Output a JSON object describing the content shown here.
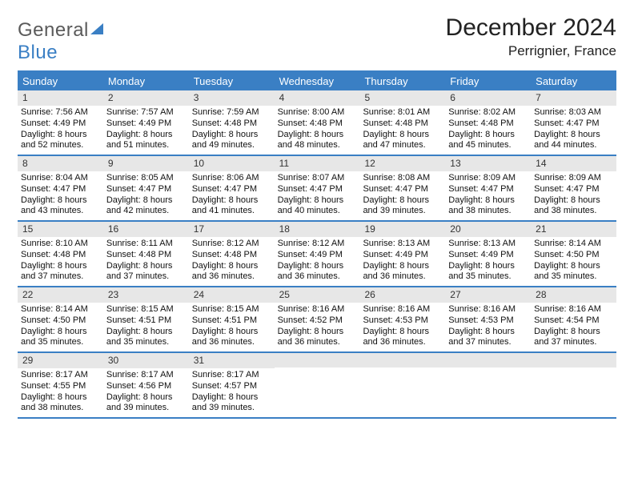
{
  "brand": {
    "general": "General",
    "blue": "Blue"
  },
  "title": "December 2024",
  "location": "Perrignier, France",
  "colors": {
    "brand_blue": "#3a7fc4",
    "brand_gray": "#5a5a5a",
    "header_bg": "#3a7fc4",
    "header_text": "#ffffff",
    "daynum_bg": "#e7e7e7",
    "rule": "#3a7fc4"
  },
  "weekdays": [
    "Sunday",
    "Monday",
    "Tuesday",
    "Wednesday",
    "Thursday",
    "Friday",
    "Saturday"
  ],
  "weeks": [
    [
      {
        "n": "1",
        "sunrise": "Sunrise: 7:56 AM",
        "sunset": "Sunset: 4:49 PM",
        "day1": "Daylight: 8 hours",
        "day2": "and 52 minutes."
      },
      {
        "n": "2",
        "sunrise": "Sunrise: 7:57 AM",
        "sunset": "Sunset: 4:49 PM",
        "day1": "Daylight: 8 hours",
        "day2": "and 51 minutes."
      },
      {
        "n": "3",
        "sunrise": "Sunrise: 7:59 AM",
        "sunset": "Sunset: 4:48 PM",
        "day1": "Daylight: 8 hours",
        "day2": "and 49 minutes."
      },
      {
        "n": "4",
        "sunrise": "Sunrise: 8:00 AM",
        "sunset": "Sunset: 4:48 PM",
        "day1": "Daylight: 8 hours",
        "day2": "and 48 minutes."
      },
      {
        "n": "5",
        "sunrise": "Sunrise: 8:01 AM",
        "sunset": "Sunset: 4:48 PM",
        "day1": "Daylight: 8 hours",
        "day2": "and 47 minutes."
      },
      {
        "n": "6",
        "sunrise": "Sunrise: 8:02 AM",
        "sunset": "Sunset: 4:48 PM",
        "day1": "Daylight: 8 hours",
        "day2": "and 45 minutes."
      },
      {
        "n": "7",
        "sunrise": "Sunrise: 8:03 AM",
        "sunset": "Sunset: 4:47 PM",
        "day1": "Daylight: 8 hours",
        "day2": "and 44 minutes."
      }
    ],
    [
      {
        "n": "8",
        "sunrise": "Sunrise: 8:04 AM",
        "sunset": "Sunset: 4:47 PM",
        "day1": "Daylight: 8 hours",
        "day2": "and 43 minutes."
      },
      {
        "n": "9",
        "sunrise": "Sunrise: 8:05 AM",
        "sunset": "Sunset: 4:47 PM",
        "day1": "Daylight: 8 hours",
        "day2": "and 42 minutes."
      },
      {
        "n": "10",
        "sunrise": "Sunrise: 8:06 AM",
        "sunset": "Sunset: 4:47 PM",
        "day1": "Daylight: 8 hours",
        "day2": "and 41 minutes."
      },
      {
        "n": "11",
        "sunrise": "Sunrise: 8:07 AM",
        "sunset": "Sunset: 4:47 PM",
        "day1": "Daylight: 8 hours",
        "day2": "and 40 minutes."
      },
      {
        "n": "12",
        "sunrise": "Sunrise: 8:08 AM",
        "sunset": "Sunset: 4:47 PM",
        "day1": "Daylight: 8 hours",
        "day2": "and 39 minutes."
      },
      {
        "n": "13",
        "sunrise": "Sunrise: 8:09 AM",
        "sunset": "Sunset: 4:47 PM",
        "day1": "Daylight: 8 hours",
        "day2": "and 38 minutes."
      },
      {
        "n": "14",
        "sunrise": "Sunrise: 8:09 AM",
        "sunset": "Sunset: 4:47 PM",
        "day1": "Daylight: 8 hours",
        "day2": "and 38 minutes."
      }
    ],
    [
      {
        "n": "15",
        "sunrise": "Sunrise: 8:10 AM",
        "sunset": "Sunset: 4:48 PM",
        "day1": "Daylight: 8 hours",
        "day2": "and 37 minutes."
      },
      {
        "n": "16",
        "sunrise": "Sunrise: 8:11 AM",
        "sunset": "Sunset: 4:48 PM",
        "day1": "Daylight: 8 hours",
        "day2": "and 37 minutes."
      },
      {
        "n": "17",
        "sunrise": "Sunrise: 8:12 AM",
        "sunset": "Sunset: 4:48 PM",
        "day1": "Daylight: 8 hours",
        "day2": "and 36 minutes."
      },
      {
        "n": "18",
        "sunrise": "Sunrise: 8:12 AM",
        "sunset": "Sunset: 4:49 PM",
        "day1": "Daylight: 8 hours",
        "day2": "and 36 minutes."
      },
      {
        "n": "19",
        "sunrise": "Sunrise: 8:13 AM",
        "sunset": "Sunset: 4:49 PM",
        "day1": "Daylight: 8 hours",
        "day2": "and 36 minutes."
      },
      {
        "n": "20",
        "sunrise": "Sunrise: 8:13 AM",
        "sunset": "Sunset: 4:49 PM",
        "day1": "Daylight: 8 hours",
        "day2": "and 35 minutes."
      },
      {
        "n": "21",
        "sunrise": "Sunrise: 8:14 AM",
        "sunset": "Sunset: 4:50 PM",
        "day1": "Daylight: 8 hours",
        "day2": "and 35 minutes."
      }
    ],
    [
      {
        "n": "22",
        "sunrise": "Sunrise: 8:14 AM",
        "sunset": "Sunset: 4:50 PM",
        "day1": "Daylight: 8 hours",
        "day2": "and 35 minutes."
      },
      {
        "n": "23",
        "sunrise": "Sunrise: 8:15 AM",
        "sunset": "Sunset: 4:51 PM",
        "day1": "Daylight: 8 hours",
        "day2": "and 35 minutes."
      },
      {
        "n": "24",
        "sunrise": "Sunrise: 8:15 AM",
        "sunset": "Sunset: 4:51 PM",
        "day1": "Daylight: 8 hours",
        "day2": "and 36 minutes."
      },
      {
        "n": "25",
        "sunrise": "Sunrise: 8:16 AM",
        "sunset": "Sunset: 4:52 PM",
        "day1": "Daylight: 8 hours",
        "day2": "and 36 minutes."
      },
      {
        "n": "26",
        "sunrise": "Sunrise: 8:16 AM",
        "sunset": "Sunset: 4:53 PM",
        "day1": "Daylight: 8 hours",
        "day2": "and 36 minutes."
      },
      {
        "n": "27",
        "sunrise": "Sunrise: 8:16 AM",
        "sunset": "Sunset: 4:53 PM",
        "day1": "Daylight: 8 hours",
        "day2": "and 37 minutes."
      },
      {
        "n": "28",
        "sunrise": "Sunrise: 8:16 AM",
        "sunset": "Sunset: 4:54 PM",
        "day1": "Daylight: 8 hours",
        "day2": "and 37 minutes."
      }
    ],
    [
      {
        "n": "29",
        "sunrise": "Sunrise: 8:17 AM",
        "sunset": "Sunset: 4:55 PM",
        "day1": "Daylight: 8 hours",
        "day2": "and 38 minutes."
      },
      {
        "n": "30",
        "sunrise": "Sunrise: 8:17 AM",
        "sunset": "Sunset: 4:56 PM",
        "day1": "Daylight: 8 hours",
        "day2": "and 39 minutes."
      },
      {
        "n": "31",
        "sunrise": "Sunrise: 8:17 AM",
        "sunset": "Sunset: 4:57 PM",
        "day1": "Daylight: 8 hours",
        "day2": "and 39 minutes."
      },
      {
        "empty": true
      },
      {
        "empty": true
      },
      {
        "empty": true
      },
      {
        "empty": true
      }
    ]
  ]
}
